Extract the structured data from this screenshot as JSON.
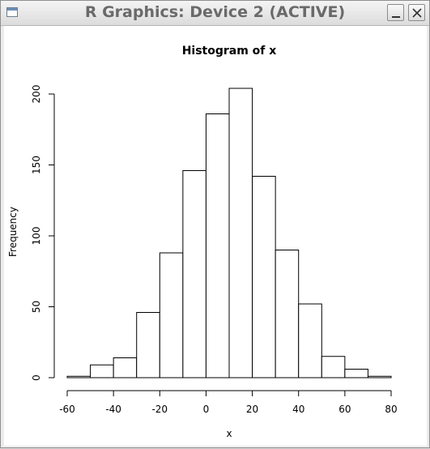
{
  "window": {
    "title": "R Graphics: Device 2 (ACTIVE)",
    "icons": {
      "app": "window-icon",
      "minimize": "minimize-icon",
      "close": "close-icon"
    }
  },
  "chart_data": {
    "type": "bar",
    "title": "Histogram of x",
    "xlabel": "x",
    "ylabel": "Frequency",
    "bin_edges": [
      -60,
      -50,
      -40,
      -30,
      -20,
      -10,
      0,
      10,
      20,
      30,
      40,
      50,
      60,
      70,
      80
    ],
    "values": [
      1,
      9,
      14,
      46,
      88,
      146,
      186,
      204,
      142,
      90,
      52,
      15,
      6,
      1
    ],
    "xlim": [
      -60,
      80
    ],
    "ylim": [
      0,
      200
    ],
    "xticks": [
      -60,
      -40,
      -20,
      0,
      20,
      40,
      60,
      80
    ],
    "yticks": [
      0,
      50,
      100,
      150,
      200
    ],
    "grid": false
  }
}
